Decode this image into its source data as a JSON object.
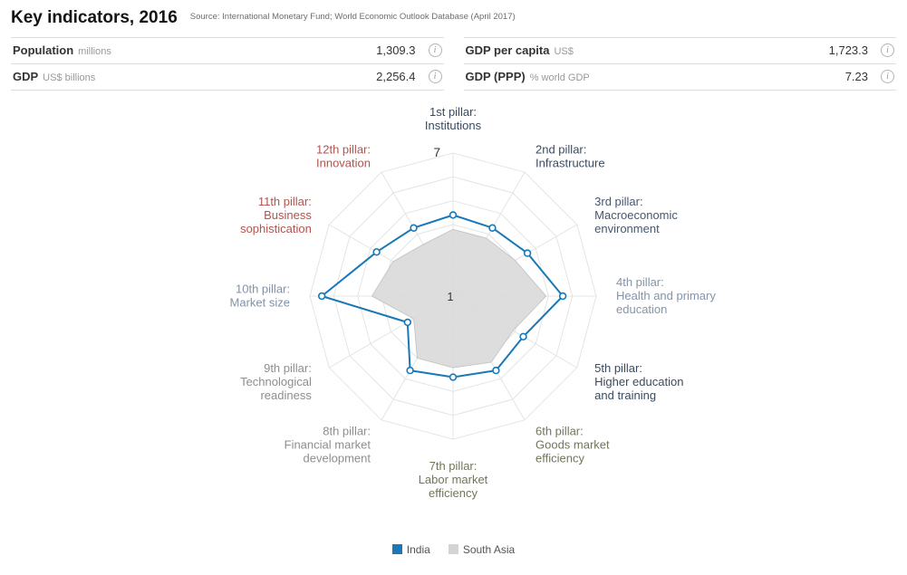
{
  "header": {
    "title": "Key indicators, 2016",
    "source": "Source: International Monetary Fund; World Economic Outlook Database (April 2017)"
  },
  "indicators": [
    {
      "id": "population",
      "label": "Population",
      "unit": "millions",
      "value": "1,309.3"
    },
    {
      "id": "gdp",
      "label": "GDP",
      "unit": "US$ billions",
      "value": "2,256.4"
    },
    {
      "id": "gdp-per-capita",
      "label": "GDP per capita",
      "unit": "US$",
      "value": "1,723.3"
    },
    {
      "id": "gdp-ppp",
      "label": "GDP (PPP)",
      "unit": "% world GDP",
      "value": "7.23"
    }
  ],
  "chart_data": {
    "type": "radar",
    "axis_range": [
      1,
      7
    ],
    "levels": 6,
    "grid": "on",
    "ticks": {
      "center": "1",
      "outer": "7"
    },
    "categories": [
      {
        "id": "institutions",
        "label": "1st pillar: Institutions",
        "lines": [
          "1st pillar:",
          "Institutions"
        ],
        "color": "#3a4b5f"
      },
      {
        "id": "infrastructure",
        "label": "2nd pillar: Infrastructure",
        "lines": [
          "2nd pillar:",
          "Infrastructure"
        ],
        "color": "#3a4b5f"
      },
      {
        "id": "macroeconomic",
        "label": "3rd pillar: Macroeconomic environment",
        "lines": [
          "3rd pillar:",
          "Macroeconomic",
          "environment"
        ],
        "color": "#46586d"
      },
      {
        "id": "health-primary-edu",
        "label": "4th pillar: Health and primary education",
        "lines": [
          "4th pillar:",
          "Health and primary",
          "education"
        ],
        "color": "#8595a8"
      },
      {
        "id": "higher-education",
        "label": "5th pillar: Higher education and training",
        "lines": [
          "5th pillar:",
          "Higher education",
          "and training"
        ],
        "color": "#3a4b5f"
      },
      {
        "id": "goods-market",
        "label": "6th pillar: Goods market efficiency",
        "lines": [
          "6th pillar:",
          "Goods market",
          "efficiency"
        ],
        "color": "#72755a"
      },
      {
        "id": "labor-market",
        "label": "7th pillar: Labor market efficiency",
        "lines": [
          "7th pillar:",
          "Labor market",
          "efficiency"
        ],
        "color": "#72755a"
      },
      {
        "id": "financial-market",
        "label": "8th pillar: Financial market development",
        "lines": [
          "8th pillar:",
          "Financial market",
          "development"
        ],
        "color": "#8e8e8e"
      },
      {
        "id": "technological-readiness",
        "label": "9th pillar: Technological readiness",
        "lines": [
          "9th pillar:",
          "Technological",
          "readiness"
        ],
        "color": "#8e8e8e"
      },
      {
        "id": "market-size",
        "label": "10th pillar: Market size",
        "lines": [
          "10th pillar:",
          "Market size"
        ],
        "color": "#8192a6"
      },
      {
        "id": "business-sophistication",
        "label": "11th pillar: Business sophistication",
        "lines": [
          "11th pillar:",
          "Business",
          "sophistication"
        ],
        "color": "#b2544e"
      },
      {
        "id": "innovation",
        "label": "12th pillar: Innovation",
        "lines": [
          "12th pillar:",
          "Innovation"
        ],
        "color": "#b2544e"
      }
    ],
    "series": [
      {
        "id": "india",
        "name": "India",
        "style": "line",
        "color": "#1878b8",
        "values": [
          4.4,
          4.3,
          4.6,
          5.6,
          4.4,
          4.6,
          4.4,
          4.6,
          3.2,
          6.5,
          4.7,
          4.3
        ]
      },
      {
        "id": "south-asia",
        "name": "South Asia",
        "style": "area",
        "color": "#dadada",
        "border": "#c8c8c8",
        "values": [
          3.8,
          3.8,
          4.0,
          4.9,
          3.9,
          4.2,
          4.0,
          4.0,
          2.9,
          4.4,
          3.9,
          3.5
        ]
      }
    ],
    "legend": [
      {
        "id": "india",
        "label": "India",
        "color": "#1878b8"
      },
      {
        "id": "south-asia",
        "label": "South Asia",
        "color": "#d4d4d4"
      }
    ],
    "colors": {
      "grid_line": "#e4e4e4",
      "tick_text": "#333333"
    }
  }
}
